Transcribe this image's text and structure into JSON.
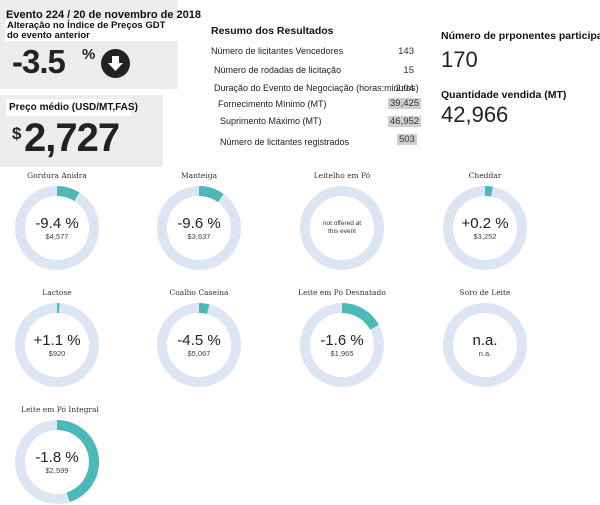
{
  "header": {
    "event_title": "Evento 224 / 20 de novembro de 2018",
    "index_subtitle_line1": "Alteração no Índice de Preços GDT",
    "index_subtitle_line2": "do evento anterior",
    "index_value": "-3.5",
    "index_unit": "%",
    "arrow_icon": "arrow-down-icon",
    "price_label": "Preço médio (USD/MT,FAS)",
    "price_currency": "$",
    "price_value": "2,727"
  },
  "summary": {
    "title": "Resumo dos Resultados",
    "rows": [
      {
        "label": "Número de licitantes Vencedores",
        "value": "143",
        "highlight": false
      },
      {
        "label": "Número de rodadas de licitação",
        "value": "15",
        "highlight": false
      },
      {
        "label": "Duração do Evento de Negociação (horas:minutos)",
        "value": "2:04",
        "highlight": false
      },
      {
        "label": "Fornecimento Mínimo (MT)",
        "value": "39,425",
        "highlight": true
      },
      {
        "label": "Suprimento Máximo (MT)",
        "value": "46,952",
        "highlight": true
      },
      {
        "label": "Número de licitantes registrados",
        "value": "503",
        "highlight": true
      }
    ]
  },
  "stats": {
    "bidders_label": "Número de prponentes participantes",
    "bidders_value": "170",
    "sold_label": "Quantidade vendida (MT)",
    "sold_value": "42,966"
  },
  "colors": {
    "ring_bg": "#dce6f2",
    "ring_fg": "#4cb8b8"
  },
  "products": [
    {
      "title": "Gordura Anidra",
      "change": "-9.4 %",
      "price": "$4,577",
      "na_text": "",
      "fraction": 0.09
    },
    {
      "title": "Manteiga",
      "change": "-9.6 %",
      "price": "$3,637",
      "na_text": "",
      "fraction": 0.1
    },
    {
      "title": "Leitelho em Pó",
      "change": "",
      "price": "",
      "na_text": "not offered at this event",
      "fraction": 0
    },
    {
      "title": "Cheddar",
      "change": "+0.2 %",
      "price": "$3,252",
      "na_text": "",
      "fraction": 0.03
    },
    {
      "title": "Lactose",
      "change": "+1.1 %",
      "price": "$920",
      "na_text": "",
      "fraction": 0.01
    },
    {
      "title": "Coalho Caseína",
      "change": "-4.5 %",
      "price": "$5,067",
      "na_text": "",
      "fraction": 0.04
    },
    {
      "title": "Leite em Pó Desnatado",
      "change": "-1.6 %",
      "price": "$1,965",
      "na_text": "",
      "fraction": 0.17
    },
    {
      "title": "Soro de Leite",
      "change": "n.a.",
      "price": "n.a.",
      "na_text": "",
      "fraction": 0
    },
    {
      "title": "Leite em Pó Integral",
      "change": "-1.8 %",
      "price": "$2,599",
      "na_text": "",
      "fraction": 0.45
    }
  ]
}
